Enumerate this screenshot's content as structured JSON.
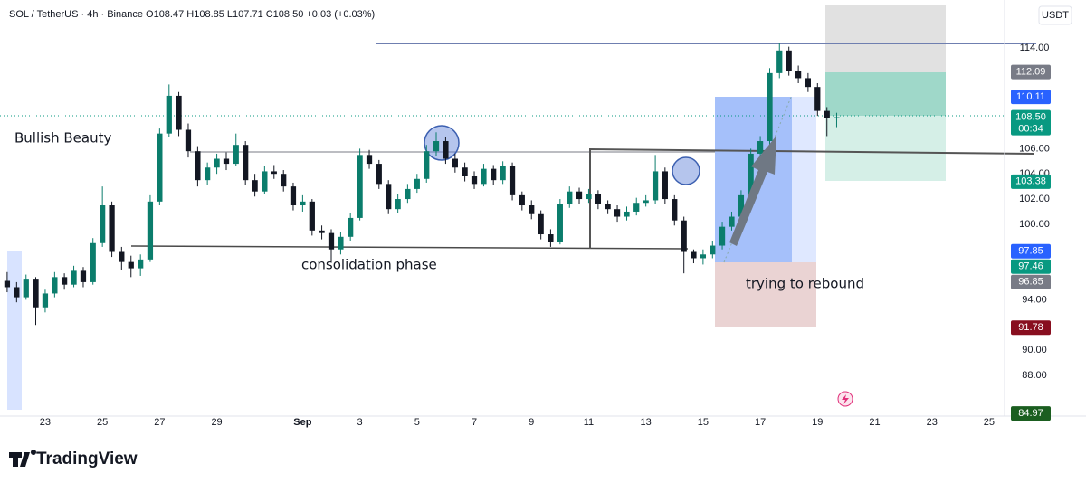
{
  "header": "SOL / TetherUS · 4h · Binance  O108.47  H108.85  L107.71  C108.50  +0.03 (+0.03%)",
  "currency": "USDT",
  "brand": "TradingView",
  "chart_data": {
    "type": "candlestick",
    "up_color": "#0b7d6c",
    "down_color": "#131722",
    "annotations": [
      "Bullish Beauty",
      "consolidation phase",
      "trying to rebound"
    ],
    "x": [
      21.67,
      22,
      22.33,
      22.67,
      23,
      23.33,
      23.67,
      24,
      24.33,
      24.67,
      25,
      25.33,
      25.67,
      26,
      26.33,
      26.67,
      27,
      27.33,
      27.67,
      28,
      28.33,
      28.67,
      29,
      29.33,
      29.67,
      30,
      30.33,
      30.67,
      31,
      31.33,
      31.67,
      32,
      32.33,
      32.67,
      33,
      33.33,
      33.67,
      34,
      34.33,
      34.67,
      35,
      35.33,
      35.67,
      36,
      36.33,
      36.67,
      37,
      37.33,
      37.67,
      38,
      38.33,
      38.67,
      39,
      39.33,
      39.67,
      40,
      40.33,
      40.67,
      41,
      41.33,
      41.67,
      42,
      42.33,
      42.67,
      43,
      43.33,
      43.67,
      44,
      44.33,
      44.67,
      45,
      45.33,
      45.67,
      46,
      46.33,
      46.67,
      47,
      47.33,
      47.67,
      48,
      48.33,
      48.67,
      49,
      49.33,
      49.67,
      50,
      50.33,
      50.67
    ],
    "ohlc": [
      [
        95.5,
        96.2,
        94.6,
        95.0
      ],
      [
        95.0,
        95.4,
        93.8,
        94.2
      ],
      [
        94.2,
        96.0,
        94.0,
        95.6
      ],
      [
        95.6,
        95.8,
        92.0,
        93.4
      ],
      [
        93.4,
        94.8,
        93.0,
        94.5
      ],
      [
        94.5,
        96.2,
        94.2,
        95.8
      ],
      [
        95.8,
        96.1,
        94.8,
        95.2
      ],
      [
        95.2,
        96.7,
        95.0,
        96.3
      ],
      [
        96.3,
        96.6,
        95.0,
        95.4
      ],
      [
        95.4,
        98.9,
        95.2,
        98.5
      ],
      [
        98.5,
        103.0,
        98.2,
        101.5
      ],
      [
        101.5,
        101.8,
        97.4,
        97.8
      ],
      [
        97.8,
        98.2,
        96.4,
        97.0
      ],
      [
        97.0,
        97.5,
        95.8,
        96.5
      ],
      [
        96.5,
        97.6,
        95.9,
        97.2
      ],
      [
        97.2,
        102.3,
        97.0,
        101.8
      ],
      [
        101.8,
        107.6,
        101.5,
        107.2
      ],
      [
        107.2,
        111.1,
        106.9,
        110.2
      ],
      [
        110.2,
        110.5,
        107.0,
        107.5
      ],
      [
        107.5,
        108.0,
        105.3,
        105.8
      ],
      [
        105.8,
        106.2,
        103.0,
        103.5
      ],
      [
        103.5,
        104.9,
        103.1,
        104.5
      ],
      [
        104.5,
        105.6,
        104.0,
        105.2
      ],
      [
        105.2,
        105.7,
        104.3,
        104.8
      ],
      [
        104.8,
        107.2,
        104.6,
        106.3
      ],
      [
        106.3,
        106.6,
        103.1,
        103.5
      ],
      [
        103.5,
        104.0,
        102.2,
        102.6
      ],
      [
        102.6,
        104.6,
        102.4,
        104.2
      ],
      [
        104.2,
        104.7,
        103.6,
        104.0
      ],
      [
        104.0,
        104.3,
        102.6,
        103.0
      ],
      [
        103.0,
        103.3,
        101.1,
        101.5
      ],
      [
        101.5,
        102.3,
        101.0,
        101.8
      ],
      [
        101.8,
        102.0,
        99.1,
        99.5
      ],
      [
        99.5,
        99.9,
        98.8,
        99.3
      ],
      [
        99.3,
        99.6,
        97.0,
        98.0
      ],
      [
        98.0,
        99.4,
        97.6,
        99.0
      ],
      [
        99.0,
        100.9,
        98.7,
        100.5
      ],
      [
        100.5,
        106.0,
        100.3,
        105.5
      ],
      [
        105.5,
        105.9,
        104.4,
        104.8
      ],
      [
        104.8,
        105.1,
        102.8,
        103.2
      ],
      [
        103.2,
        103.5,
        100.8,
        101.2
      ],
      [
        101.2,
        102.4,
        100.9,
        102.0
      ],
      [
        102.0,
        103.2,
        101.7,
        102.8
      ],
      [
        102.8,
        104.0,
        102.5,
        103.6
      ],
      [
        103.6,
        106.3,
        103.3,
        105.8
      ],
      [
        105.8,
        107.3,
        105.4,
        106.6
      ],
      [
        106.6,
        106.9,
        104.8,
        105.2
      ],
      [
        105.2,
        105.6,
        104.1,
        104.5
      ],
      [
        104.5,
        104.9,
        103.4,
        103.8
      ],
      [
        103.8,
        104.2,
        102.8,
        103.2
      ],
      [
        103.2,
        104.8,
        103.0,
        104.4
      ],
      [
        104.4,
        104.7,
        103.1,
        103.5
      ],
      [
        103.5,
        105.0,
        103.2,
        104.6
      ],
      [
        104.6,
        104.9,
        101.9,
        102.3
      ],
      [
        102.3,
        102.6,
        101.1,
        101.5
      ],
      [
        101.5,
        101.9,
        100.4,
        100.8
      ],
      [
        100.8,
        101.1,
        98.8,
        99.2
      ],
      [
        99.2,
        99.6,
        98.2,
        98.6
      ],
      [
        98.6,
        102.0,
        98.4,
        101.6
      ],
      [
        101.6,
        103.0,
        101.3,
        102.6
      ],
      [
        102.6,
        102.9,
        101.6,
        102.0
      ],
      [
        102.0,
        102.8,
        101.7,
        102.4
      ],
      [
        102.4,
        102.7,
        101.2,
        101.6
      ],
      [
        101.6,
        101.9,
        100.8,
        101.2
      ],
      [
        101.2,
        101.5,
        100.2,
        100.6
      ],
      [
        100.6,
        101.4,
        100.3,
        101.0
      ],
      [
        101.0,
        102.1,
        100.7,
        101.7
      ],
      [
        101.7,
        102.3,
        101.4,
        101.9
      ],
      [
        101.9,
        105.5,
        101.6,
        104.2
      ],
      [
        104.2,
        104.5,
        101.6,
        102.0
      ],
      [
        102.0,
        102.3,
        99.9,
        100.3
      ],
      [
        100.3,
        100.6,
        96.1,
        97.8
      ],
      [
        97.8,
        98.0,
        96.9,
        97.3
      ],
      [
        97.3,
        98.0,
        96.8,
        97.6
      ],
      [
        97.6,
        98.7,
        97.3,
        98.3
      ],
      [
        98.3,
        100.2,
        98.0,
        99.8
      ],
      [
        99.8,
        101.0,
        99.5,
        100.6
      ],
      [
        100.6,
        102.7,
        100.3,
        102.3
      ],
      [
        102.3,
        106.0,
        102.0,
        105.6
      ],
      [
        105.6,
        107.0,
        105.2,
        106.6
      ],
      [
        106.6,
        112.4,
        106.3,
        112.0
      ],
      [
        112.0,
        114.4,
        111.6,
        113.8
      ],
      [
        113.8,
        114.1,
        111.8,
        112.2
      ],
      [
        112.2,
        112.6,
        111.2,
        111.6
      ],
      [
        111.6,
        112.0,
        110.5,
        110.9
      ],
      [
        110.9,
        111.2,
        108.6,
        109.0
      ],
      [
        109.0,
        109.3,
        107.0,
        108.47
      ],
      [
        108.47,
        108.85,
        107.71,
        108.5
      ]
    ],
    "xlim": [
      21.42,
      56.54
    ],
    "ylim": [
      84.76,
      117.81
    ],
    "xticks": [
      23,
      25,
      27,
      29,
      {
        "value": 32,
        "label": "Sep"
      },
      {
        "value": 34,
        "label": "3"
      },
      {
        "value": 36,
        "label": "5"
      },
      {
        "value": 38,
        "label": "7"
      },
      {
        "value": 40,
        "label": "9"
      },
      {
        "value": 42,
        "label": "11"
      },
      {
        "value": 44,
        "label": "13"
      },
      {
        "value": 46,
        "label": "15"
      },
      {
        "value": 48,
        "label": "17"
      },
      {
        "value": 50,
        "label": "19"
      },
      {
        "value": 52,
        "label": "21"
      },
      {
        "value": 54,
        "label": "23"
      },
      {
        "value": 56,
        "label": "25"
      }
    ],
    "yticks": [
      {
        "value": 114,
        "label": "114.00"
      },
      {
        "value": 106,
        "label": "106.00"
      },
      {
        "value": 104,
        "label": "104.00"
      },
      {
        "value": 102,
        "label": "102.00"
      },
      {
        "value": 100,
        "label": "100.00"
      },
      {
        "value": 94,
        "label": "94.00"
      },
      {
        "value": 90,
        "label": "90.00"
      },
      {
        "value": 88,
        "label": "88.00"
      }
    ],
    "price_labels": [
      {
        "value": 112.09,
        "label": "112.09",
        "color": "#787b86"
      },
      {
        "value": 110.11,
        "label": "110.11",
        "color": "#2962ff"
      },
      {
        "value": 108.5,
        "label": "108.50",
        "color": "#089981",
        "countdown": "00:34"
      },
      {
        "value": 103.38,
        "label": "103.38",
        "color": "#089981"
      },
      {
        "value": 97.85,
        "label": "97.85",
        "color": "#2962ff"
      },
      {
        "value": 97.46,
        "label": "97.46",
        "color": "#089981"
      },
      {
        "value": 96.85,
        "label": "96.85",
        "color": "#787b86"
      },
      {
        "value": 91.78,
        "label": "91.78",
        "color": "#880e1f"
      },
      {
        "value": 84.97,
        "label": "84.97",
        "color": "#1b5e20"
      }
    ]
  }
}
